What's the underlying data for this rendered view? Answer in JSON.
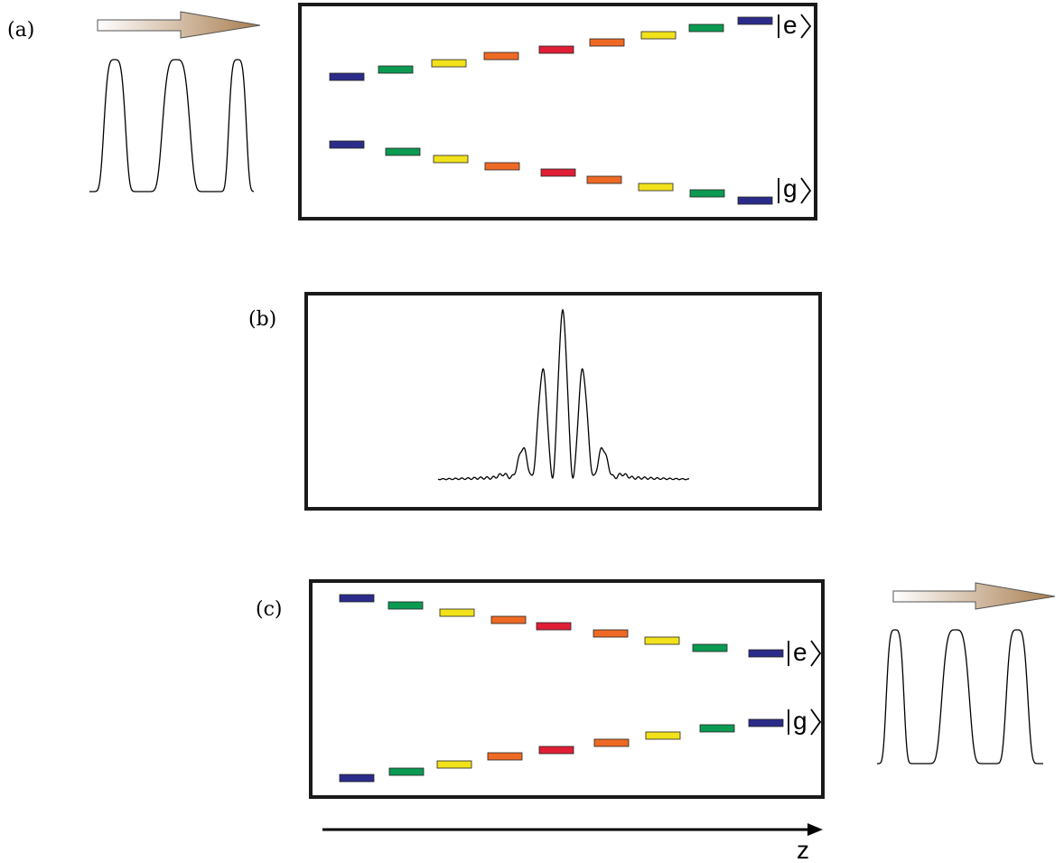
{
  "panels": {
    "a": {
      "label": "(a)",
      "upper_state": "e",
      "lower_state": "g"
    },
    "b": {
      "label": "(b)"
    },
    "c": {
      "label": "(c)",
      "upper_state": "e",
      "lower_state": "g"
    }
  },
  "axis": {
    "label": "z"
  },
  "colors": {
    "blue": "#2b2c8a",
    "green": "#0b9a52",
    "yellow": "#f1e21b",
    "orange": "#ee6a24",
    "red": "#e01e36",
    "frame": "#1a1a1a",
    "arrow_start": "#ffffff",
    "arrow_end": "#a87d4f"
  },
  "level_color_sequence": [
    "blue",
    "green",
    "yellow",
    "orange",
    "red",
    "orange",
    "yellow",
    "green",
    "blue"
  ]
}
